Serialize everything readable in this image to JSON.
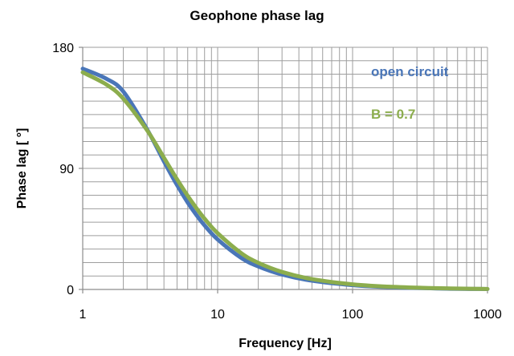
{
  "chart_data": {
    "type": "line",
    "title": "Geophone phase lag",
    "xlabel": "Frequency [Hz]",
    "ylabel": "Phase lag [ °]",
    "x_scale": "log",
    "xlim": [
      1,
      1000
    ],
    "ylim": [
      0,
      180
    ],
    "x_ticks": [
      1,
      10,
      100,
      1000
    ],
    "x_tick_labels": [
      "1",
      "10",
      "100",
      "1000"
    ],
    "y_ticks": [
      0,
      90,
      180
    ],
    "y_tick_labels": [
      "0",
      "90",
      "180"
    ],
    "grid": true,
    "legend_placement": "inline-top-right",
    "series": [
      {
        "name": "open circuit",
        "color": "#4a76b8",
        "x": [
          1,
          1.5,
          2,
          3,
          4,
          5,
          6,
          7,
          8,
          10,
          15,
          20,
          30,
          50,
          100,
          200,
          500,
          1000
        ],
        "y": [
          164.1,
          156.6,
          147.1,
          119.0,
          95.2,
          77.6,
          64.6,
          55.0,
          47.6,
          37.2,
          23.4,
          17.1,
          11.1,
          6.5,
          3.2,
          1.6,
          0.6,
          0.3
        ]
      },
      {
        "name": "B = 0.7",
        "color": "#8cad4d",
        "x": [
          1,
          1.5,
          2,
          3,
          4,
          5,
          6,
          7,
          8,
          10,
          15,
          20,
          30,
          50,
          100,
          200,
          500,
          1000
        ],
        "y": [
          161.4,
          152.3,
          141.8,
          118.3,
          97.9,
          81.9,
          69.6,
          60.1,
          52.6,
          41.8,
          26.9,
          19.8,
          13.0,
          7.7,
          3.8,
          1.9,
          0.8,
          0.4
        ]
      }
    ]
  }
}
